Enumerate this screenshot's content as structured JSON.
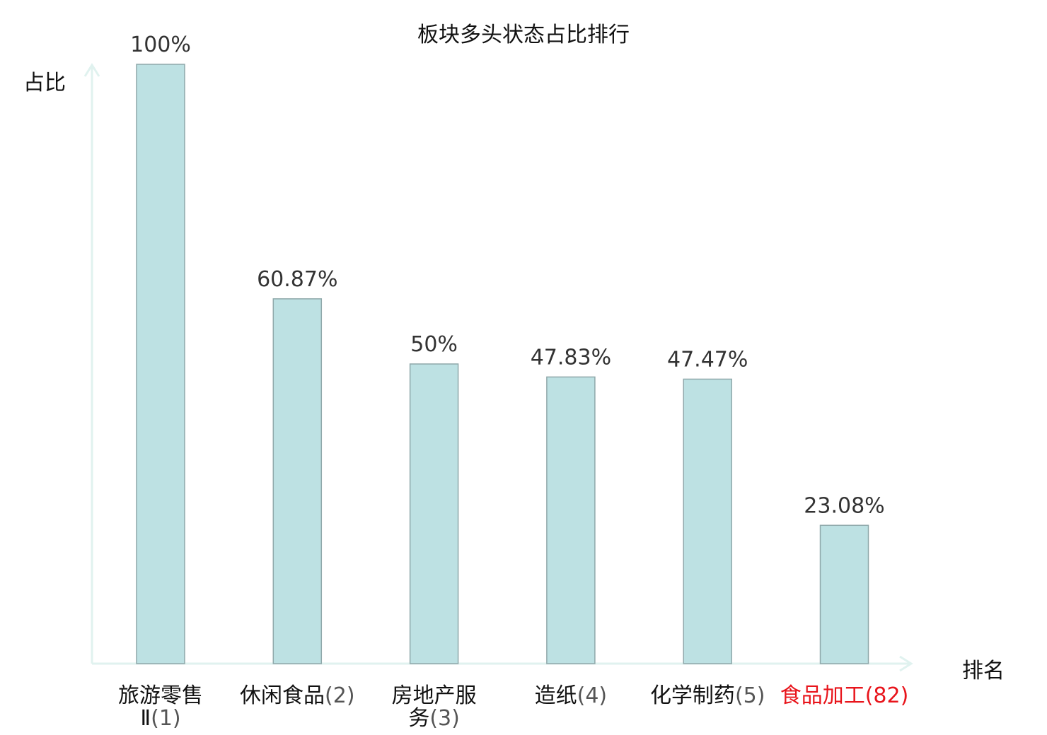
{
  "chart_data": {
    "type": "bar",
    "title": "板块多头状态占比排行",
    "ylabel": "占比",
    "xlabel": "排名",
    "ylim": [
      0,
      100
    ],
    "grid": false,
    "categories": [
      {
        "name_lines": [
          "旅游零售",
          "Ⅱ"
        ],
        "rank": "(1)",
        "highlight": false
      },
      {
        "name_lines": [
          "休闲食品"
        ],
        "rank": "(2)",
        "highlight": false
      },
      {
        "name_lines": [
          "房地产服",
          "务"
        ],
        "rank": "(3)",
        "highlight": false
      },
      {
        "name_lines": [
          "造纸"
        ],
        "rank": "(4)",
        "highlight": false
      },
      {
        "name_lines": [
          "化学制药"
        ],
        "rank": "(5)",
        "highlight": false
      },
      {
        "name_lines": [
          "食品加工"
        ],
        "rank": "(82)",
        "highlight": true
      }
    ],
    "values": [
      100,
      60.87,
      50,
      47.83,
      47.47,
      23.08
    ],
    "value_labels": [
      "100%",
      "60.87%",
      "50%",
      "47.83%",
      "47.47%",
      "23.08%"
    ],
    "colors": {
      "bar_fill": "#bde1e3",
      "bar_stroke": "#8fa8aa",
      "axis": "#e0f2ef",
      "label_text": "#333333",
      "rank_text": "#555555",
      "highlight": "#e8141b"
    }
  }
}
